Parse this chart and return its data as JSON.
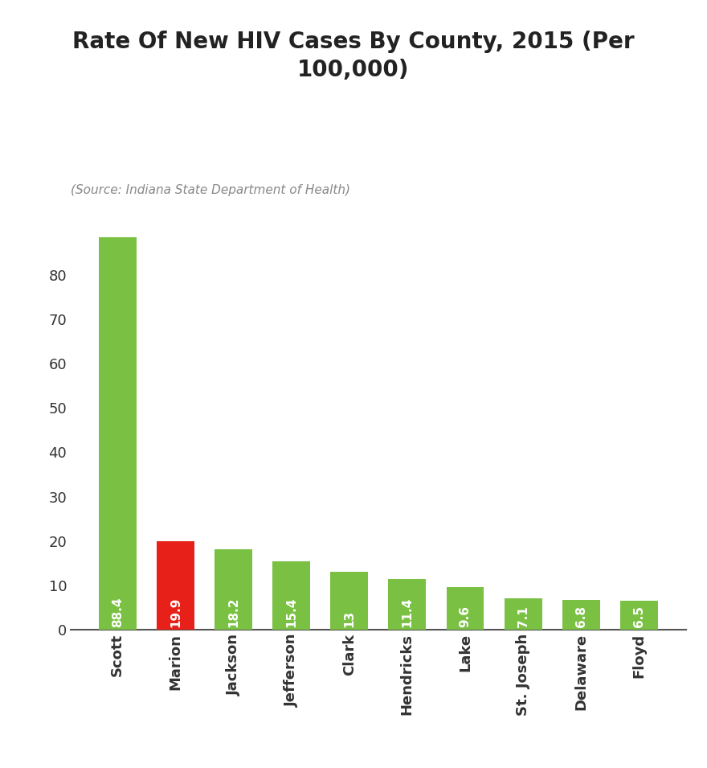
{
  "title": "Rate Of New HIV Cases By County, 2015 (Per\n100,000)",
  "source": "(Source: Indiana State Department of Health)",
  "categories": [
    "Scott",
    "Marion",
    "Jackson",
    "Jefferson",
    "Clark",
    "Hendricks",
    "Lake",
    "St. Joseph",
    "Delaware",
    "Floyd"
  ],
  "values": [
    88.4,
    19.9,
    18.2,
    15.4,
    13.0,
    11.4,
    9.6,
    7.1,
    6.8,
    6.5
  ],
  "bar_colors": [
    "#7ac143",
    "#e8201a",
    "#7ac143",
    "#7ac143",
    "#7ac143",
    "#7ac143",
    "#7ac143",
    "#7ac143",
    "#7ac143",
    "#7ac143"
  ],
  "value_labels": [
    "88.4",
    "19.9",
    "18.2",
    "15.4",
    "13",
    "11.4",
    "9.6",
    "7.1",
    "6.8",
    "6.5"
  ],
  "ylim": [
    0,
    90
  ],
  "yticks": [
    0,
    10,
    20,
    30,
    40,
    50,
    60,
    70,
    80
  ],
  "background_color": "#ffffff",
  "title_fontsize": 20,
  "source_fontsize": 11,
  "tick_label_fontsize": 13,
  "bar_label_fontsize": 11,
  "xtick_fontsize": 13
}
